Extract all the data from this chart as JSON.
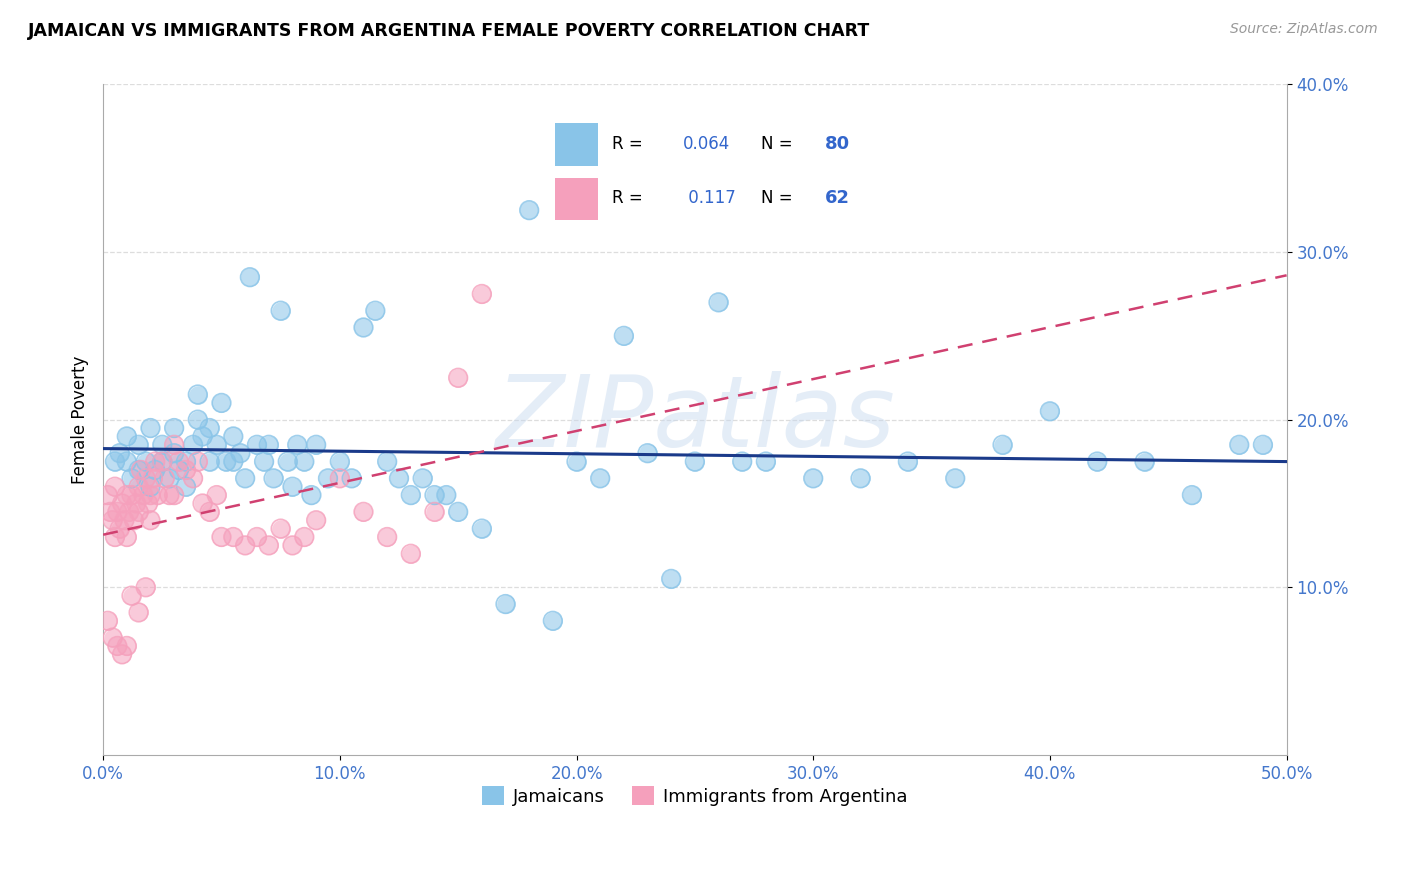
{
  "title": "JAMAICAN VS IMMIGRANTS FROM ARGENTINA FEMALE POVERTY CORRELATION CHART",
  "source": "Source: ZipAtlas.com",
  "ylabel": "Female Poverty",
  "xlim": [
    0,
    0.5
  ],
  "ylim": [
    0,
    0.4
  ],
  "xticks": [
    0.0,
    0.1,
    0.2,
    0.3,
    0.4,
    0.5
  ],
  "yticks": [
    0.1,
    0.2,
    0.3,
    0.4
  ],
  "xtick_labels": [
    "0.0%",
    "10.0%",
    "20.0%",
    "30.0%",
    "40.0%",
    "50.0%"
  ],
  "ytick_labels": [
    "10.0%",
    "20.0%",
    "30.0%",
    "40.0%"
  ],
  "series1_label": "Jamaicans",
  "series2_label": "Immigrants from Argentina",
  "series1_color": "#89c4e8",
  "series2_color": "#f5a0bc",
  "series1_line_color": "#1a3a8a",
  "series2_line_color": "#d04070",
  "R1": 0.064,
  "N1": 80,
  "R2": 0.117,
  "N2": 62,
  "watermark": "ZIPatlas",
  "background_color": "#ffffff",
  "grid_color": "#cccccc",
  "jamaicans_x": [
    0.005,
    0.007,
    0.01,
    0.01,
    0.012,
    0.015,
    0.015,
    0.018,
    0.02,
    0.02,
    0.022,
    0.025,
    0.025,
    0.028,
    0.03,
    0.03,
    0.032,
    0.035,
    0.035,
    0.038,
    0.04,
    0.04,
    0.042,
    0.045,
    0.045,
    0.048,
    0.05,
    0.052,
    0.055,
    0.055,
    0.058,
    0.06,
    0.062,
    0.065,
    0.068,
    0.07,
    0.072,
    0.075,
    0.078,
    0.08,
    0.082,
    0.085,
    0.088,
    0.09,
    0.095,
    0.1,
    0.105,
    0.11,
    0.115,
    0.12,
    0.125,
    0.13,
    0.135,
    0.14,
    0.145,
    0.15,
    0.16,
    0.17,
    0.18,
    0.19,
    0.2,
    0.21,
    0.22,
    0.23,
    0.24,
    0.25,
    0.26,
    0.27,
    0.28,
    0.3,
    0.32,
    0.34,
    0.36,
    0.38,
    0.4,
    0.42,
    0.44,
    0.46,
    0.48,
    0.49
  ],
  "jamaicans_y": [
    0.175,
    0.18,
    0.175,
    0.19,
    0.165,
    0.17,
    0.185,
    0.175,
    0.16,
    0.195,
    0.17,
    0.175,
    0.185,
    0.165,
    0.18,
    0.195,
    0.17,
    0.16,
    0.175,
    0.185,
    0.215,
    0.2,
    0.19,
    0.195,
    0.175,
    0.185,
    0.21,
    0.175,
    0.19,
    0.175,
    0.18,
    0.165,
    0.285,
    0.185,
    0.175,
    0.185,
    0.165,
    0.265,
    0.175,
    0.16,
    0.185,
    0.175,
    0.155,
    0.185,
    0.165,
    0.175,
    0.165,
    0.255,
    0.265,
    0.175,
    0.165,
    0.155,
    0.165,
    0.155,
    0.155,
    0.145,
    0.135,
    0.09,
    0.325,
    0.08,
    0.175,
    0.165,
    0.25,
    0.18,
    0.105,
    0.175,
    0.27,
    0.175,
    0.175,
    0.165,
    0.165,
    0.175,
    0.165,
    0.185,
    0.205,
    0.175,
    0.175,
    0.155,
    0.185,
    0.185
  ],
  "argentina_x": [
    0.002,
    0.003,
    0.004,
    0.005,
    0.005,
    0.006,
    0.007,
    0.008,
    0.009,
    0.01,
    0.01,
    0.011,
    0.012,
    0.013,
    0.014,
    0.015,
    0.015,
    0.016,
    0.017,
    0.018,
    0.019,
    0.02,
    0.02,
    0.021,
    0.022,
    0.023,
    0.025,
    0.026,
    0.028,
    0.03,
    0.03,
    0.032,
    0.035,
    0.038,
    0.04,
    0.042,
    0.045,
    0.048,
    0.05,
    0.055,
    0.06,
    0.065,
    0.07,
    0.075,
    0.08,
    0.085,
    0.09,
    0.1,
    0.11,
    0.12,
    0.13,
    0.14,
    0.15,
    0.16,
    0.002,
    0.004,
    0.006,
    0.008,
    0.01,
    0.012,
    0.015,
    0.018
  ],
  "argentina_y": [
    0.155,
    0.145,
    0.14,
    0.16,
    0.13,
    0.145,
    0.135,
    0.15,
    0.14,
    0.155,
    0.13,
    0.145,
    0.155,
    0.14,
    0.15,
    0.16,
    0.145,
    0.17,
    0.155,
    0.165,
    0.15,
    0.155,
    0.14,
    0.165,
    0.175,
    0.155,
    0.175,
    0.165,
    0.155,
    0.185,
    0.155,
    0.175,
    0.17,
    0.165,
    0.175,
    0.15,
    0.145,
    0.155,
    0.13,
    0.13,
    0.125,
    0.13,
    0.125,
    0.135,
    0.125,
    0.13,
    0.14,
    0.165,
    0.145,
    0.13,
    0.12,
    0.145,
    0.225,
    0.275,
    0.08,
    0.07,
    0.065,
    0.06,
    0.065,
    0.095,
    0.085,
    0.1
  ]
}
